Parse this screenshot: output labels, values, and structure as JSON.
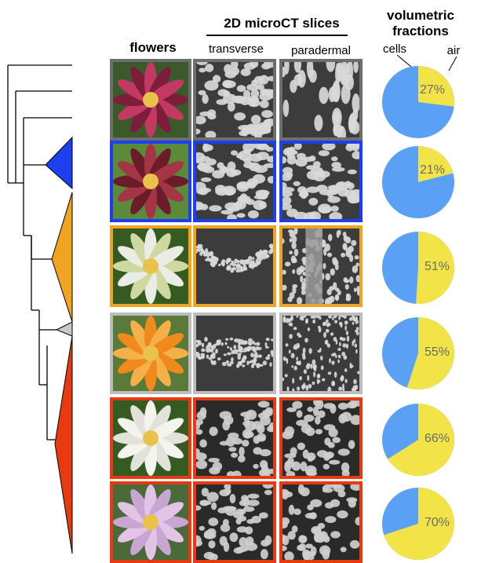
{
  "headers": {
    "flowers": "flowers",
    "microct": "2D microCT slices",
    "transverse": "transverse",
    "paradermal": "paradermal",
    "volumetric": "volumetric",
    "fractions": "fractions",
    "cells": "cells",
    "air": "air"
  },
  "colors": {
    "cells": "#5aa0f5",
    "air": "#f2e448",
    "clade_blue": "#1e3ff0",
    "clade_orange": "#f0a422",
    "clade_gray": "#c8c8c8",
    "clade_red": "#e83a10",
    "frame_gray": "#6e6e6e",
    "frame_silver": "#bdbdbd"
  },
  "rows": [
    {
      "id": "row1",
      "frame_color": "#6e6e6e",
      "flower": "magenta spiky flower",
      "flower_colors": [
        "#c23a63",
        "#7e1c3c",
        "#3a5a2a"
      ],
      "transverse": "dense packed cells",
      "paradermal": "elongated packed cells",
      "air_percent": 27,
      "air_label": "27%"
    },
    {
      "id": "row2",
      "frame_color": "#1e3ff0",
      "flower": "maroon strap-petal flower",
      "flower_colors": [
        "#a43544",
        "#6a1c2a",
        "#5a8a3a"
      ],
      "transverse": "dense packed cells",
      "paradermal": "dense packed cells",
      "air_percent": 21,
      "air_label": "21%"
    },
    {
      "id": "row3",
      "frame_color": "#f0a422",
      "flower": "white star flower",
      "flower_colors": [
        "#ecece6",
        "#cfd8a0",
        "#355a22"
      ],
      "transverse": "folded cell layer",
      "paradermal": "vein with porous cells",
      "air_percent": 51,
      "air_label": "51%"
    },
    {
      "id": "row4",
      "frame_color": "#bdbdbd",
      "flower": "orange poppy",
      "flower_colors": [
        "#f08a1c",
        "#f6b04a",
        "#5a7a3a"
      ],
      "transverse": "thin cell band",
      "paradermal": "striated porous cells",
      "air_percent": 55,
      "air_label": "55%"
    },
    {
      "id": "row5",
      "frame_color": "#e83a10",
      "flower": "white rose-like flower",
      "flower_colors": [
        "#f4f4ef",
        "#e2e2da",
        "#355a22"
      ],
      "transverse": "spongy porous cells",
      "paradermal": "spongy porous cells",
      "air_percent": 66,
      "air_label": "66%"
    },
    {
      "id": "row6",
      "frame_color": "#e83a10",
      "flower": "pale pink flower",
      "flower_colors": [
        "#e3c4e6",
        "#c9a5d3",
        "#4a6a3a"
      ],
      "transverse": "spongy porous cells",
      "paradermal": "spongy porous cells",
      "air_percent": 70,
      "air_label": "70%"
    }
  ]
}
